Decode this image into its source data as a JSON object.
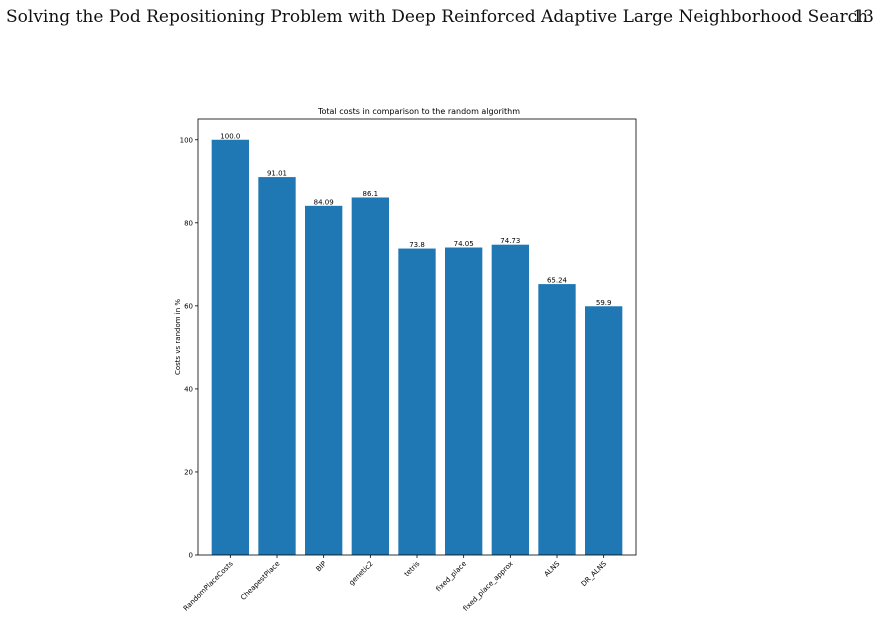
{
  "header": {
    "title": "Solving the Pod Repositioning Problem with Deep Reinforced Adaptive Large Neighborhood Search",
    "page_number": "13"
  },
  "chart_data": {
    "type": "bar",
    "title": "Total costs in comparison to the random algorithm",
    "xlabel": "",
    "ylabel": "Costs vs random in %",
    "categories": [
      "RandomPlaceCosts",
      "CheapestPlace",
      "BIP",
      "genetic2",
      "tetris",
      "fixed_place",
      "fixed_place_approx",
      "ALNS",
      "DR_ALNS"
    ],
    "values": [
      100.0,
      91.01,
      84.09,
      86.1,
      73.8,
      74.05,
      74.73,
      65.24,
      59.9
    ],
    "data_labels": [
      "100.0",
      "91.01",
      "84.09",
      "86.1",
      "73.8",
      "74.05",
      "74.73",
      "65.24",
      "59.9"
    ],
    "yticks": [
      0,
      20,
      40,
      60,
      80,
      100
    ],
    "ylim": [
      0,
      105
    ],
    "bar_color": "#1f77b4",
    "grid": false
  }
}
